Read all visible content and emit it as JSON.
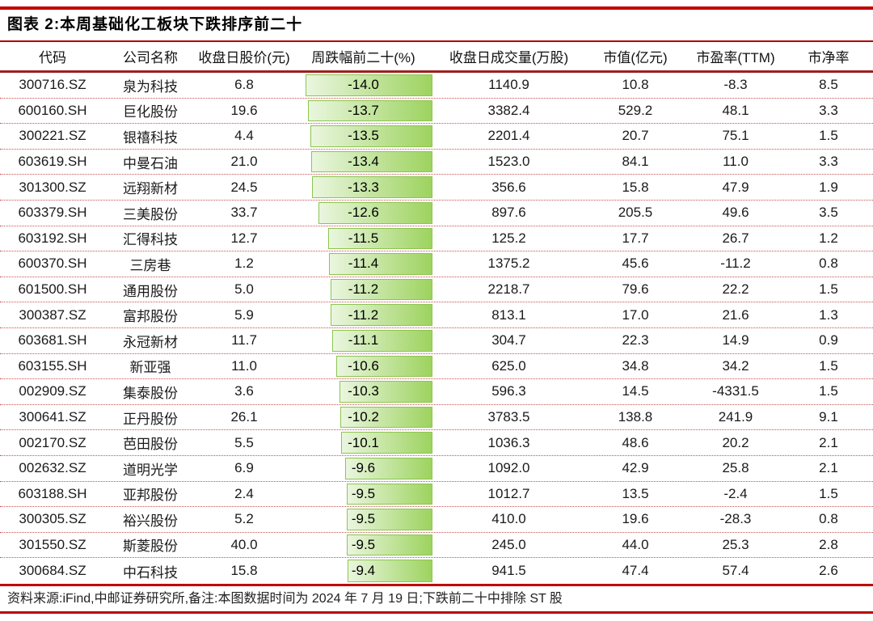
{
  "title": "图表 2:本周基础化工板块下跌排序前二十",
  "footer": "资料来源:iFind,中邮证券研究所,备注:本图数据时间为 2024 年 7 月 19 日;下跌前二十中排除 ST 股",
  "colors": {
    "rule_bright_red": "#c00000",
    "rule_mid_red": "#b00000",
    "rule_dark_red": "#9e1f1f",
    "dotted_separator_red": "#c94f4f",
    "bar_fill_start": "#eaf6df",
    "bar_fill_end": "#9dd35f",
    "bar_border": "#8cc550"
  },
  "chart_data": {
    "type": "table",
    "title": "本周基础化工板块下跌排序前二十",
    "columns": [
      "代码",
      "公司名称",
      "收盘日股价(元)",
      "周跌幅前二十(%)",
      "收盘日成交量(万股)",
      "市值(亿元)",
      "市盈率(TTM)",
      "市净率"
    ],
    "bar_column_index": 3,
    "bar_max_abs": 14.0,
    "bar_range": [
      -14.0,
      0
    ],
    "rows": [
      [
        "300716.SZ",
        "泉为科技",
        "6.8",
        "-14.0",
        "1140.9",
        "10.8",
        "-8.3",
        "8.5"
      ],
      [
        "600160.SH",
        "巨化股份",
        "19.6",
        "-13.7",
        "3382.4",
        "529.2",
        "48.1",
        "3.3"
      ],
      [
        "300221.SZ",
        "银禧科技",
        "4.4",
        "-13.5",
        "2201.4",
        "20.7",
        "75.1",
        "1.5"
      ],
      [
        "603619.SH",
        "中曼石油",
        "21.0",
        "-13.4",
        "1523.0",
        "84.1",
        "11.0",
        "3.3"
      ],
      [
        "301300.SZ",
        "远翔新材",
        "24.5",
        "-13.3",
        "356.6",
        "15.8",
        "47.9",
        "1.9"
      ],
      [
        "603379.SH",
        "三美股份",
        "33.7",
        "-12.6",
        "897.6",
        "205.5",
        "49.6",
        "3.5"
      ],
      [
        "603192.SH",
        "汇得科技",
        "12.7",
        "-11.5",
        "125.2",
        "17.7",
        "26.7",
        "1.2"
      ],
      [
        "600370.SH",
        "三房巷",
        "1.2",
        "-11.4",
        "1375.2",
        "45.6",
        "-11.2",
        "0.8"
      ],
      [
        "601500.SH",
        "通用股份",
        "5.0",
        "-11.2",
        "2218.7",
        "79.6",
        "22.2",
        "1.5"
      ],
      [
        "300387.SZ",
        "富邦股份",
        "5.9",
        "-11.2",
        "813.1",
        "17.0",
        "21.6",
        "1.3"
      ],
      [
        "603681.SH",
        "永冠新材",
        "11.7",
        "-11.1",
        "304.7",
        "22.3",
        "14.9",
        "0.9"
      ],
      [
        "603155.SH",
        "新亚强",
        "11.0",
        "-10.6",
        "625.0",
        "34.8",
        "34.2",
        "1.5"
      ],
      [
        "002909.SZ",
        "集泰股份",
        "3.6",
        "-10.3",
        "596.3",
        "14.5",
        "-4331.5",
        "1.5"
      ],
      [
        "300641.SZ",
        "正丹股份",
        "26.1",
        "-10.2",
        "3783.5",
        "138.8",
        "241.9",
        "9.1"
      ],
      [
        "002170.SZ",
        "芭田股份",
        "5.5",
        "-10.1",
        "1036.3",
        "48.6",
        "20.2",
        "2.1"
      ],
      [
        "002632.SZ",
        "道明光学",
        "6.9",
        "-9.6",
        "1092.0",
        "42.9",
        "25.8",
        "2.1"
      ],
      [
        "603188.SH",
        "亚邦股份",
        "2.4",
        "-9.5",
        "1012.7",
        "13.5",
        "-2.4",
        "1.5"
      ],
      [
        "300305.SZ",
        "裕兴股份",
        "5.2",
        "-9.5",
        "410.0",
        "19.6",
        "-28.3",
        "0.8"
      ],
      [
        "301550.SZ",
        "斯菱股份",
        "40.0",
        "-9.5",
        "245.0",
        "44.0",
        "25.3",
        "2.8"
      ],
      [
        "300684.SZ",
        "中石科技",
        "15.8",
        "-9.4",
        "941.5",
        "47.4",
        "57.4",
        "2.6"
      ]
    ]
  }
}
